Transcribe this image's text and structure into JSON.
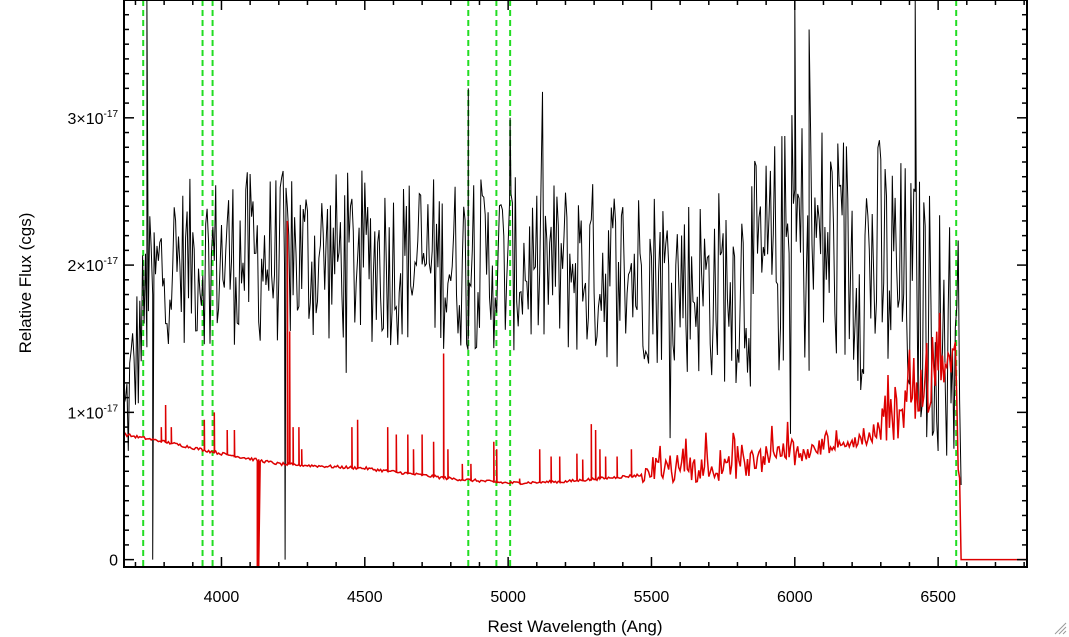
{
  "chart_data": {
    "type": "line",
    "title": "",
    "xlabel": "Rest Wavelength (Ang)",
    "ylabel": "Relative Flux (cgs)",
    "xlim": [
      3660,
      6810
    ],
    "ylim": [
      -5e-19,
      3.8e-17
    ],
    "x_ticks": [
      4000,
      4500,
      5000,
      5500,
      6000,
      6500
    ],
    "x_tick_labels": [
      "4000",
      "4500",
      "5000",
      "5500",
      "6000",
      "6500"
    ],
    "y_ticks": [
      0,
      1e-17,
      2e-17,
      3e-17
    ],
    "y_tick_labels": [
      {
        "base": "0",
        "exp": ""
      },
      {
        "base": "1×10",
        "exp": "-17"
      },
      {
        "base": "2×10",
        "exp": "-17"
      },
      {
        "base": "3×10",
        "exp": "-17"
      }
    ],
    "grid": false,
    "vertical_lines": {
      "color": "#22dd22",
      "style": "dashed",
      "x": [
        3727,
        3934,
        3969,
        4861,
        4959,
        5007,
        6563
      ]
    },
    "series": [
      {
        "color": "#000000",
        "x_range": [
          3660,
          6580
        ],
        "x_step": 5,
        "mean": [
          [
            3660,
            0.9
          ],
          [
            3740,
            1.8
          ],
          [
            3800,
            2.0
          ],
          [
            4000,
            2.05
          ],
          [
            4500,
            2.05
          ],
          [
            5000,
            2.0
          ],
          [
            5500,
            1.95
          ],
          [
            5700,
            1.85
          ],
          [
            5900,
            1.95
          ],
          [
            6000,
            2.2
          ],
          [
            6300,
            2.0
          ],
          [
            6500,
            1.6
          ],
          [
            6580,
            1.4
          ]
        ],
        "noise": [
          [
            3660,
            0.5
          ],
          [
            4000,
            0.6
          ],
          [
            5000,
            0.6
          ],
          [
            5700,
            0.65
          ],
          [
            6000,
            0.9
          ],
          [
            6580,
            0.9
          ]
        ],
        "extra_points": [
          [
            3740,
            3.8
          ],
          [
            3760,
            0.0
          ],
          [
            4222,
            0.0
          ],
          [
            4861,
            3.2
          ],
          [
            4861,
            1.5
          ],
          [
            5007,
            3.0
          ],
          [
            6000,
            3.8
          ],
          [
            6050,
            3.6
          ],
          [
            6420,
            3.8
          ]
        ]
      },
      {
        "color": "#dd0000",
        "x_range": [
          3660,
          6810
        ],
        "x_step": 5,
        "baseline": [
          [
            3660,
            0.85
          ],
          [
            3800,
            0.8
          ],
          [
            4000,
            0.72
          ],
          [
            4200,
            0.65
          ],
          [
            4500,
            0.62
          ],
          [
            4800,
            0.55
          ],
          [
            5000,
            0.52
          ],
          [
            5200,
            0.53
          ],
          [
            5500,
            0.58
          ],
          [
            5700,
            0.58
          ],
          [
            5800,
            0.6
          ],
          [
            6000,
            0.7
          ],
          [
            6250,
            0.8
          ],
          [
            6400,
            0.95
          ],
          [
            6500,
            1.15
          ],
          [
            6560,
            1.3
          ],
          [
            6580,
            0.0
          ],
          [
            6810,
            0.0
          ]
        ],
        "noise_regions": [
          [
            5470,
            6060,
            0.18
          ],
          [
            6060,
            6300,
            0.07
          ],
          [
            6300,
            6580,
            0.3
          ]
        ],
        "spikes": [
          [
            3790,
            0.9
          ],
          [
            3805,
            1.05
          ],
          [
            3825,
            0.9
          ],
          [
            3940,
            0.95
          ],
          [
            3975,
            1.0
          ],
          [
            4020,
            0.88
          ],
          [
            4045,
            0.88
          ],
          [
            4230,
            2.3
          ],
          [
            4238,
            1.55
          ],
          [
            4250,
            0.9
          ],
          [
            4270,
            0.9
          ],
          [
            4280,
            0.75
          ],
          [
            4455,
            0.9
          ],
          [
            4475,
            0.95
          ],
          [
            4580,
            0.9
          ],
          [
            4610,
            0.85
          ],
          [
            4650,
            0.85
          ],
          [
            4670,
            0.75
          ],
          [
            4700,
            0.85
          ],
          [
            4740,
            0.8
          ],
          [
            4775,
            1.4
          ],
          [
            4790,
            0.75
          ],
          [
            4840,
            0.65
          ],
          [
            4870,
            0.65
          ],
          [
            4950,
            0.8
          ],
          [
            4960,
            0.75
          ],
          [
            5040,
            0.55
          ],
          [
            5110,
            0.75
          ],
          [
            5150,
            0.7
          ],
          [
            5180,
            0.7
          ],
          [
            5240,
            0.72
          ],
          [
            5260,
            0.68
          ],
          [
            5290,
            0.92
          ],
          [
            5305,
            0.88
          ],
          [
            5320,
            0.75
          ],
          [
            5340,
            0.7
          ],
          [
            5380,
            0.7
          ],
          [
            5430,
            0.75
          ]
        ],
        "drops": [
          [
            4125,
            -0.05
          ],
          [
            4128,
            -0.05
          ],
          [
            4130,
            -0.05
          ]
        ]
      }
    ]
  }
}
